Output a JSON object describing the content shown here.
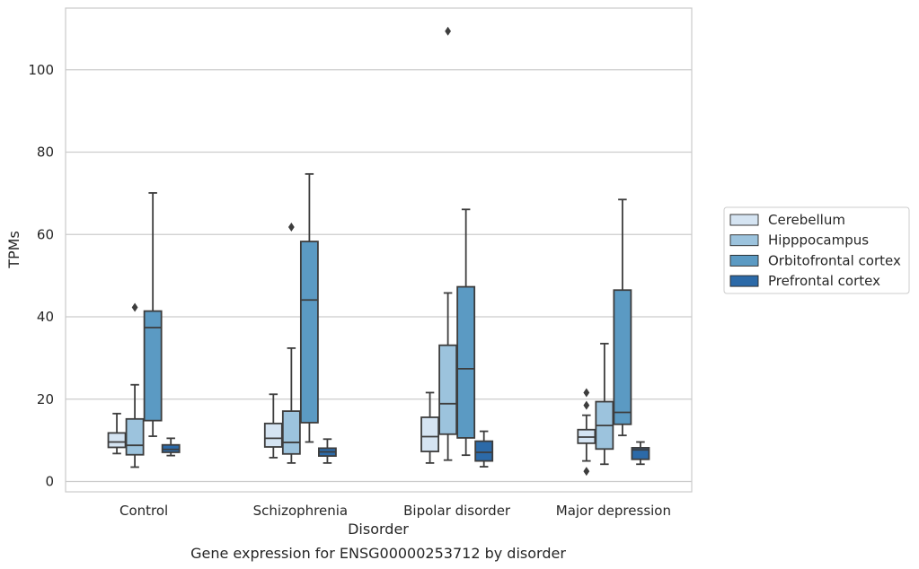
{
  "chart_data": {
    "type": "box",
    "title": "",
    "caption": "Gene expression for ENSG00000253712 by disorder",
    "xlabel": "Disorder",
    "ylabel": "TPMs",
    "ylim": [
      -2.5,
      115
    ],
    "yticks": [
      0,
      20,
      40,
      60,
      80,
      100
    ],
    "grid": "horizontal",
    "legend_position": "right",
    "categories": [
      "Control",
      "Schizophrenia",
      "Bipolar disorder",
      "Major depression"
    ],
    "series": [
      {
        "name": "Cerebellum",
        "color": "#d5e4f2",
        "boxes": [
          {
            "whisker_low": 6.8,
            "q1": 8.3,
            "median": 9.6,
            "q3": 11.8,
            "whisker_high": 16.5,
            "outliers": []
          },
          {
            "whisker_low": 5.8,
            "q1": 8.4,
            "median": 10.5,
            "q3": 14.1,
            "whisker_high": 21.2,
            "outliers": []
          },
          {
            "whisker_low": 4.5,
            "q1": 7.3,
            "median": 10.9,
            "q3": 15.6,
            "whisker_high": 21.6,
            "outliers": []
          },
          {
            "whisker_low": 5.0,
            "q1": 9.3,
            "median": 10.8,
            "q3": 12.6,
            "whisker_high": 16.1,
            "outliers": [
              2.5,
              18.5,
              21.6
            ]
          }
        ]
      },
      {
        "name": "Hipppocampus",
        "color": "#9cc3dd",
        "boxes": [
          {
            "whisker_low": 3.5,
            "q1": 6.5,
            "median": 8.8,
            "q3": 15.2,
            "whisker_high": 23.5,
            "outliers": [
              42.3
            ]
          },
          {
            "whisker_low": 4.5,
            "q1": 6.7,
            "median": 9.5,
            "q3": 17.1,
            "whisker_high": 32.4,
            "outliers": [
              61.8
            ]
          },
          {
            "whisker_low": 5.2,
            "q1": 11.5,
            "median": 18.9,
            "q3": 33.1,
            "whisker_high": 45.8,
            "outliers": [
              109.4
            ]
          },
          {
            "whisker_low": 4.2,
            "q1": 7.9,
            "median": 13.6,
            "q3": 19.4,
            "whisker_high": 33.5,
            "outliers": []
          }
        ]
      },
      {
        "name": "Orbitofrontal cortex",
        "color": "#5b9ac3",
        "boxes": [
          {
            "whisker_low": 11.0,
            "q1": 14.8,
            "median": 37.4,
            "q3": 41.4,
            "whisker_high": 70.1,
            "outliers": []
          },
          {
            "whisker_low": 9.6,
            "q1": 14.3,
            "median": 44.1,
            "q3": 58.3,
            "whisker_high": 74.7,
            "outliers": []
          },
          {
            "whisker_low": 6.4,
            "q1": 10.6,
            "median": 27.4,
            "q3": 47.3,
            "whisker_high": 66.1,
            "outliers": []
          },
          {
            "whisker_low": 11.2,
            "q1": 13.9,
            "median": 16.8,
            "q3": 46.5,
            "whisker_high": 68.5,
            "outliers": []
          }
        ]
      },
      {
        "name": "Prefrontal cortex",
        "color": "#2c6aa8",
        "boxes": [
          {
            "whisker_low": 6.3,
            "q1": 7.1,
            "median": 7.8,
            "q3": 8.9,
            "whisker_high": 10.5,
            "outliers": []
          },
          {
            "whisker_low": 4.5,
            "q1": 6.2,
            "median": 7.2,
            "q3": 8.1,
            "whisker_high": 10.3,
            "outliers": []
          },
          {
            "whisker_low": 3.6,
            "q1": 5.0,
            "median": 7.1,
            "q3": 9.8,
            "whisker_high": 12.2,
            "outliers": []
          },
          {
            "whisker_low": 4.2,
            "q1": 5.4,
            "median": 7.7,
            "q3": 8.2,
            "whisker_high": 9.6,
            "outliers": []
          }
        ]
      }
    ]
  }
}
